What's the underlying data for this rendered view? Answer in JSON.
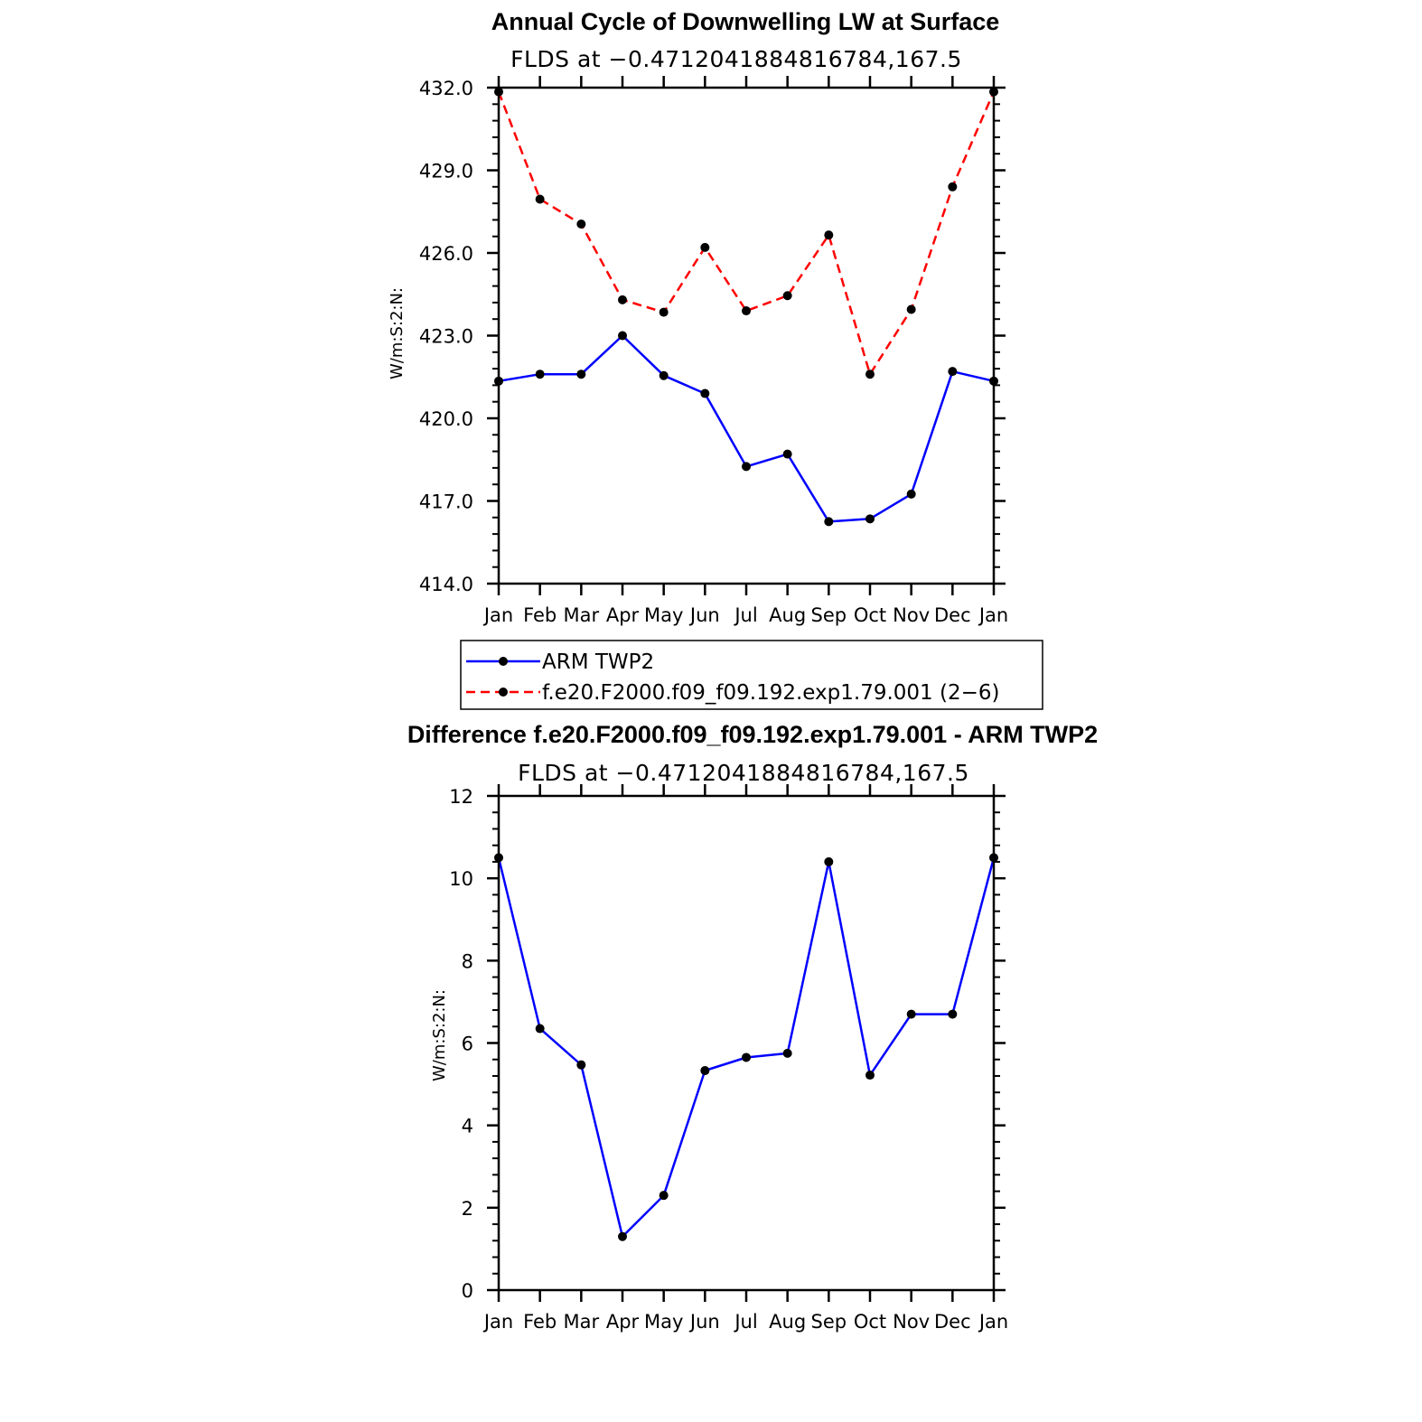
{
  "chart_data": [
    {
      "type": "line",
      "title": "Annual Cycle of Downwelling LW at Surface",
      "subtitle": "FLDS at −0.4712041884816784,167.5",
      "xlabel": "",
      "ylabel": "W/m:S:2:N:",
      "categories": [
        "Jan",
        "Feb",
        "Mar",
        "Apr",
        "May",
        "Jun",
        "Jul",
        "Aug",
        "Sep",
        "Oct",
        "Nov",
        "Dec",
        "Jan"
      ],
      "ylim": [
        414.0,
        432.0
      ],
      "yticks": [
        "414.0",
        "417.0",
        "420.0",
        "423.0",
        "426.0",
        "429.0",
        "432.0"
      ],
      "grid": false,
      "legend": "below",
      "series": [
        {
          "name": "ARM TWP2",
          "color": "#0000ff",
          "dash": "solid",
          "values": [
            421.35,
            421.6,
            421.6,
            423.0,
            421.55,
            420.9,
            418.25,
            418.7,
            416.25,
            416.35,
            417.25,
            421.7,
            421.35
          ]
        },
        {
          "name": "f.e20.F2000.f09_f09.192.exp1.79.001 (2−6)",
          "color": "#ff0000",
          "dash": "dashed",
          "values": [
            431.85,
            427.95,
            427.05,
            424.3,
            423.85,
            426.2,
            423.9,
            424.45,
            426.65,
            421.6,
            423.95,
            428.4,
            431.85
          ]
        }
      ]
    },
    {
      "type": "line",
      "title": "Difference f.e20.F2000.f09_f09.192.exp1.79.001 - ARM TWP2",
      "subtitle": "FLDS at −0.4712041884816784,167.5",
      "xlabel": "",
      "ylabel": "W/m:S:2:N:",
      "categories": [
        "Jan",
        "Feb",
        "Mar",
        "Apr",
        "May",
        "Jun",
        "Jul",
        "Aug",
        "Sep",
        "Oct",
        "Nov",
        "Dec",
        "Jan"
      ],
      "ylim": [
        0,
        12
      ],
      "yticks": [
        "0",
        "2",
        "4",
        "6",
        "8",
        "10",
        "12"
      ],
      "grid": false,
      "series": [
        {
          "name": "Difference",
          "color": "#0000ff",
          "dash": "solid",
          "values": [
            10.5,
            6.35,
            5.47,
            1.3,
            2.3,
            5.33,
            5.65,
            5.75,
            10.4,
            5.22,
            6.7,
            6.7,
            10.5
          ]
        }
      ]
    }
  ]
}
